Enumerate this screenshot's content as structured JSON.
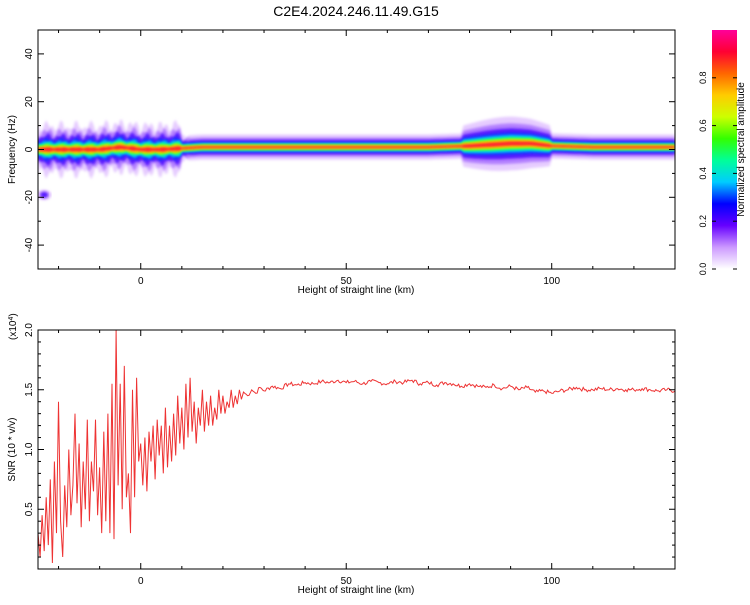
{
  "title": "C2E4.2024.246.11.49.G15",
  "chart_data": [
    {
      "type": "heatmap",
      "title": "",
      "xlabel": "Height of straight line (km)",
      "ylabel": "Frequency (Hz)",
      "xlim": [
        -25,
        130
      ],
      "ylim": [
        -50,
        50
      ],
      "xticks": [
        0,
        50,
        100
      ],
      "yticks": [
        -40,
        -20,
        0,
        20,
        40
      ],
      "grid": false,
      "band": {
        "center_hz": [
          {
            "x": -25,
            "y": 0
          },
          {
            "x": -20,
            "y": 0
          },
          {
            "x": -15,
            "y": 0
          },
          {
            "x": -10,
            "y": 0
          },
          {
            "x": -5,
            "y": 1
          },
          {
            "x": 0,
            "y": 0
          },
          {
            "x": 5,
            "y": 0
          },
          {
            "x": 10,
            "y": 0.5
          },
          {
            "x": 15,
            "y": 1
          },
          {
            "x": 20,
            "y": 1
          },
          {
            "x": 30,
            "y": 1
          },
          {
            "x": 50,
            "y": 1
          },
          {
            "x": 70,
            "y": 1
          },
          {
            "x": 80,
            "y": 1.5
          },
          {
            "x": 90,
            "y": 2.5
          },
          {
            "x": 95,
            "y": 2.5
          },
          {
            "x": 100,
            "y": 1.5
          },
          {
            "x": 110,
            "y": 1
          },
          {
            "x": 130,
            "y": 1
          }
        ],
        "spot": {
          "x": -23.5,
          "y": -19
        }
      },
      "colorbar": {
        "label": "Normalized spectral amplitude",
        "range": [
          0,
          1
        ],
        "ticks": [
          "0.0",
          "0.2",
          "0.4",
          "0.6",
          "0.8"
        ],
        "colors": [
          "#ffffff",
          "#cc99ff",
          "#6600ff",
          "#0000ff",
          "#00ccff",
          "#00ff99",
          "#33ff00",
          "#ccff00",
          "#ffcc00",
          "#ff6600",
          "#ff0033",
          "#ff0099"
        ]
      }
    },
    {
      "type": "line",
      "title": "",
      "xlabel": "Height of straight line (km)",
      "ylabel": "SNR (10 * v/v)",
      "multiplier": "(x10",
      "multiplier_exp": "4",
      "multiplier_close": ")",
      "xlim": [
        -25,
        130
      ],
      "ylim": [
        0,
        2.0
      ],
      "xticks": [
        0,
        50,
        100
      ],
      "yticks": [
        "0.5",
        "1.0",
        "1.5",
        "2.0"
      ],
      "series": [
        {
          "color": "#ee3333",
          "points": [
            [
              -25,
              0.3
            ],
            [
              -24.5,
              0.1
            ],
            [
              -24,
              0.45
            ],
            [
              -23.5,
              0.15
            ],
            [
              -23,
              0.6
            ],
            [
              -22.5,
              0.2
            ],
            [
              -22,
              0.75
            ],
            [
              -21.5,
              0.05
            ],
            [
              -21,
              0.9
            ],
            [
              -20.5,
              0.3
            ],
            [
              -20,
              1.4
            ],
            [
              -19.5,
              0.4
            ],
            [
              -19,
              0.1
            ],
            [
              -18.5,
              0.7
            ],
            [
              -18,
              0.35
            ],
            [
              -17.5,
              1.0
            ],
            [
              -17,
              0.45
            ],
            [
              -16.5,
              0.7
            ],
            [
              -16,
              1.3
            ],
            [
              -15.5,
              0.55
            ],
            [
              -15,
              1.05
            ],
            [
              -14.5,
              0.35
            ],
            [
              -14,
              0.9
            ],
            [
              -13.5,
              0.5
            ],
            [
              -13,
              1.25
            ],
            [
              -12.5,
              0.4
            ],
            [
              -12,
              0.9
            ],
            [
              -11.5,
              0.65
            ],
            [
              -11,
              1.25
            ],
            [
              -10.5,
              0.45
            ],
            [
              -10,
              0.85
            ],
            [
              -9.5,
              0.3
            ],
            [
              -9,
              1.15
            ],
            [
              -8.5,
              0.4
            ],
            [
              -8,
              1.3
            ],
            [
              -7.5,
              0.3
            ],
            [
              -7,
              1.55
            ],
            [
              -6.5,
              0.25
            ],
            [
              -6,
              2.0
            ],
            [
              -5.5,
              0.7
            ],
            [
              -5,
              1.55
            ],
            [
              -4.5,
              0.5
            ],
            [
              -4,
              1.7
            ],
            [
              -3.5,
              0.6
            ],
            [
              -3,
              0.8
            ],
            [
              -2.5,
              0.3
            ],
            [
              -2,
              1.5
            ],
            [
              -1.5,
              0.6
            ],
            [
              -1,
              1.6
            ],
            [
              -0.5,
              0.9
            ],
            [
              0,
              1.05
            ],
            [
              0.5,
              0.7
            ],
            [
              1,
              1.1
            ],
            [
              1.5,
              0.65
            ],
            [
              2,
              1.15
            ],
            [
              2.5,
              0.9
            ],
            [
              3,
              1.2
            ],
            [
              3.5,
              0.75
            ],
            [
              4,
              1.25
            ],
            [
              4.5,
              0.95
            ],
            [
              5,
              1.2
            ],
            [
              5.5,
              0.8
            ],
            [
              6,
              1.35
            ],
            [
              6.5,
              0.85
            ],
            [
              7,
              1.2
            ],
            [
              7.5,
              0.9
            ],
            [
              8,
              1.3
            ],
            [
              8.5,
              0.95
            ],
            [
              9,
              1.45
            ],
            [
              9.5,
              1.05
            ],
            [
              10,
              1.35
            ],
            [
              10.5,
              1.0
            ],
            [
              11,
              1.55
            ],
            [
              11.5,
              1.1
            ],
            [
              12,
              1.6
            ],
            [
              12.5,
              1.15
            ],
            [
              13,
              1.4
            ],
            [
              13.5,
              1.05
            ],
            [
              14,
              1.35
            ],
            [
              14.5,
              1.2
            ],
            [
              15,
              1.5
            ],
            [
              15.5,
              1.15
            ],
            [
              16,
              1.4
            ],
            [
              16.5,
              1.2
            ],
            [
              17,
              1.45
            ],
            [
              17.5,
              1.2
            ],
            [
              18,
              1.35
            ],
            [
              18.5,
              1.25
            ],
            [
              19,
              1.5
            ],
            [
              19.5,
              1.3
            ],
            [
              20,
              1.45
            ],
            [
              20.5,
              1.3
            ],
            [
              21,
              1.4
            ],
            [
              21.5,
              1.35
            ],
            [
              22,
              1.5
            ],
            [
              22.5,
              1.35
            ],
            [
              23,
              1.45
            ],
            [
              23.5,
              1.38
            ],
            [
              24,
              1.5
            ],
            [
              24.5,
              1.42
            ],
            [
              25,
              1.48
            ],
            [
              26,
              1.45
            ],
            [
              27,
              1.5
            ],
            [
              28,
              1.47
            ],
            [
              29,
              1.52
            ],
            [
              30,
              1.49
            ],
            [
              32,
              1.53
            ],
            [
              34,
              1.51
            ],
            [
              36,
              1.55
            ],
            [
              38,
              1.54
            ],
            [
              40,
              1.56
            ],
            [
              42,
              1.55
            ],
            [
              44,
              1.57
            ],
            [
              46,
              1.56
            ],
            [
              48,
              1.58
            ],
            [
              50,
              1.56
            ],
            [
              52,
              1.57
            ],
            [
              54,
              1.55
            ],
            [
              56,
              1.57
            ],
            [
              58,
              1.56
            ],
            [
              60,
              1.55
            ],
            [
              62,
              1.57
            ],
            [
              64,
              1.56
            ],
            [
              66,
              1.58
            ],
            [
              68,
              1.55
            ],
            [
              70,
              1.56
            ],
            [
              72,
              1.54
            ],
            [
              74,
              1.56
            ],
            [
              76,
              1.55
            ],
            [
              78,
              1.53
            ],
            [
              80,
              1.55
            ],
            [
              82,
              1.53
            ],
            [
              84,
              1.52
            ],
            [
              86,
              1.54
            ],
            [
              88,
              1.51
            ],
            [
              90,
              1.53
            ],
            [
              92,
              1.5
            ],
            [
              94,
              1.52
            ],
            [
              96,
              1.48
            ],
            [
              98,
              1.49
            ],
            [
              100,
              1.47
            ],
            [
              102,
              1.49
            ],
            [
              104,
              1.5
            ],
            [
              106,
              1.52
            ],
            [
              108,
              1.5
            ],
            [
              110,
              1.5
            ],
            [
              112,
              1.51
            ],
            [
              114,
              1.5
            ],
            [
              116,
              1.51
            ],
            [
              118,
              1.5
            ],
            [
              120,
              1.5
            ],
            [
              122,
              1.51
            ],
            [
              124,
              1.5
            ],
            [
              126,
              1.49
            ],
            [
              128,
              1.5
            ],
            [
              130,
              1.49
            ]
          ]
        }
      ]
    }
  ]
}
